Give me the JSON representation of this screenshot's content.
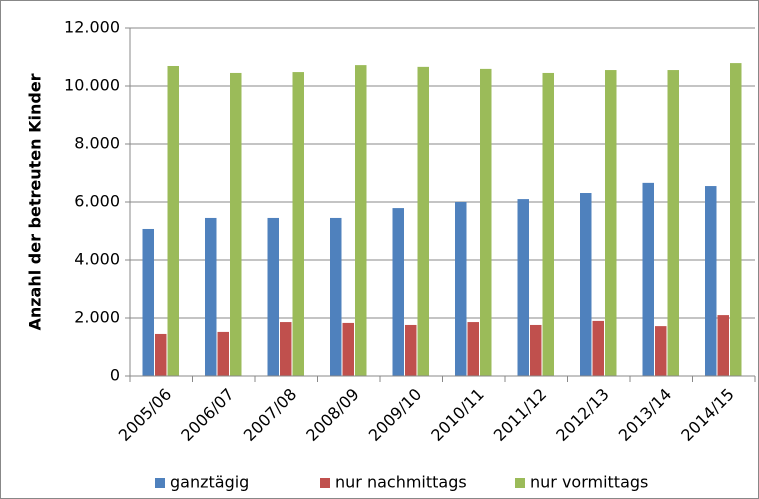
{
  "chart_data": {
    "type": "bar",
    "y_label": "Anzahl der betreuten Kinder",
    "categories": [
      "2005/06",
      "2006/07",
      "2007/08",
      "2008/09",
      "2009/10",
      "2010/11",
      "2011/12",
      "2012/13",
      "2013/14",
      "2014/15"
    ],
    "series": [
      {
        "name": "ganztägig",
        "color": "#4f81bd",
        "values": [
          5070,
          5450,
          5450,
          5450,
          5790,
          6000,
          6100,
          6310,
          6660,
          6550
        ]
      },
      {
        "name": "nur nachmittags",
        "color": "#c0504d",
        "values": [
          1450,
          1520,
          1860,
          1830,
          1760,
          1860,
          1760,
          1900,
          1720,
          2100
        ]
      },
      {
        "name": "nur vormittags",
        "color": "#9bbb59",
        "values": [
          10690,
          10450,
          10480,
          10720,
          10660,
          10590,
          10450,
          10550,
          10550,
          10790
        ]
      }
    ],
    "ylim": [
      0,
      12000
    ],
    "yticks": [
      0,
      {
        "value": 2000,
        "label": "2.000"
      },
      {
        "value": 4000,
        "label": "4.000"
      },
      {
        "value": 6000,
        "label": "6.000"
      },
      {
        "value": 8000,
        "label": "8.000"
      },
      {
        "value": 10000,
        "label": "10.000"
      },
      {
        "value": 12000,
        "label": "12.000"
      }
    ],
    "grid": true,
    "legend": "bottom"
  }
}
